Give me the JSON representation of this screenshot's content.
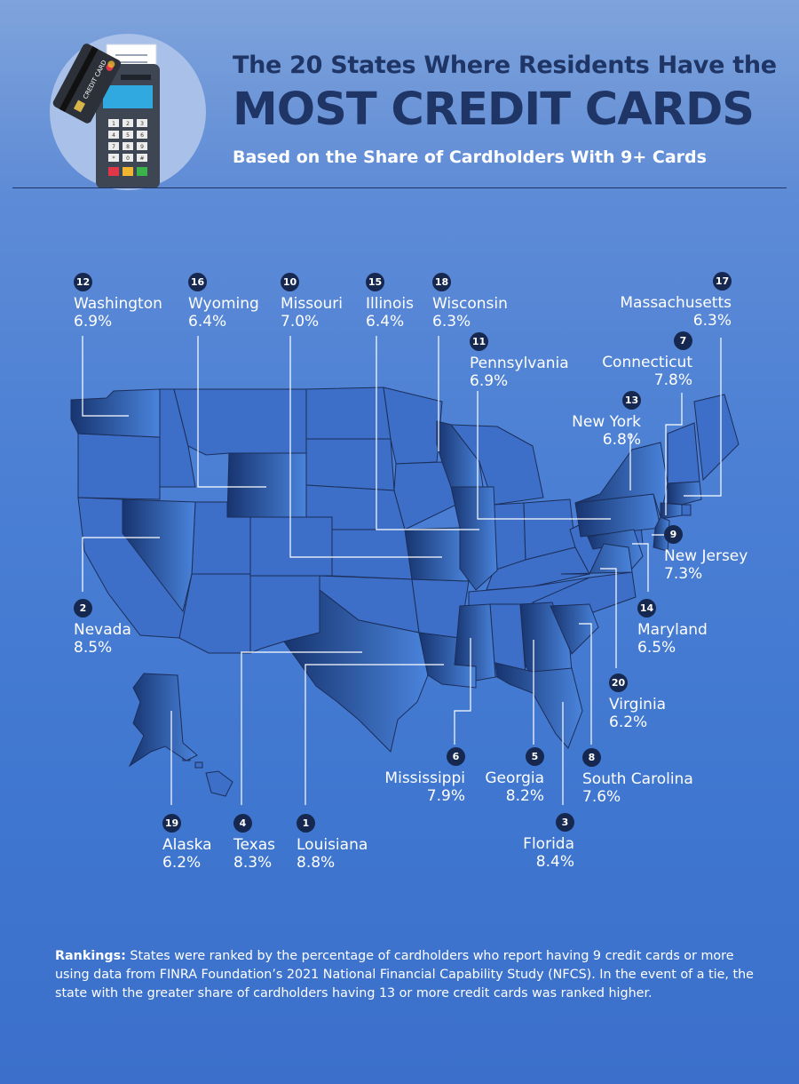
{
  "header": {
    "title_line1": "The 20 States Where Residents Have the",
    "title_line2": "MOST CREDIT CARDS",
    "subtitle": "Based on the Share of Cardholders With 9+ Cards",
    "card_text": "CREDIT CARD",
    "keypad_keys": [
      "1",
      "2",
      "3",
      "4",
      "5",
      "6",
      "7",
      "8",
      "9",
      "*",
      "0",
      "#"
    ]
  },
  "colors": {
    "title": "#1f3566",
    "rank_badge": "#16284f",
    "state_base": "#3d6fc8",
    "state_highlight_dark": "#1a3a7a",
    "state_highlight_light": "#3f78d4",
    "state_border": "#1c2e5a",
    "leader_line": "#ffffff"
  },
  "states": [
    {
      "rank": "1",
      "name": "Louisiana",
      "pct": "8.8%"
    },
    {
      "rank": "2",
      "name": "Nevada",
      "pct": "8.5%"
    },
    {
      "rank": "3",
      "name": "Florida",
      "pct": "8.4%"
    },
    {
      "rank": "4",
      "name": "Texas",
      "pct": "8.3%"
    },
    {
      "rank": "5",
      "name": "Georgia",
      "pct": "8.2%"
    },
    {
      "rank": "6",
      "name": "Mississippi",
      "pct": "7.9%"
    },
    {
      "rank": "7",
      "name": "Connecticut",
      "pct": "7.8%"
    },
    {
      "rank": "8",
      "name": "South Carolina",
      "pct": "7.6%"
    },
    {
      "rank": "9",
      "name": "New Jersey",
      "pct": "7.3%"
    },
    {
      "rank": "10",
      "name": "Missouri",
      "pct": "7.0%"
    },
    {
      "rank": "11",
      "name": "Pennsylvania",
      "pct": "6.9%"
    },
    {
      "rank": "12",
      "name": "Washington",
      "pct": "6.9%"
    },
    {
      "rank": "13",
      "name": "New York",
      "pct": "6.8%"
    },
    {
      "rank": "14",
      "name": "Maryland",
      "pct": "6.5%"
    },
    {
      "rank": "15",
      "name": "Illinois",
      "pct": "6.4%"
    },
    {
      "rank": "16",
      "name": "Wyoming",
      "pct": "6.4%"
    },
    {
      "rank": "17",
      "name": "Massachusetts",
      "pct": "6.3%"
    },
    {
      "rank": "18",
      "name": "Wisconsin",
      "pct": "6.3%"
    },
    {
      "rank": "19",
      "name": "Alaska",
      "pct": "6.2%"
    },
    {
      "rank": "20",
      "name": "Virginia",
      "pct": "6.2%"
    }
  ],
  "footnote": {
    "lead": "Rankings:",
    "text": " States were ranked by the percentage of cardholders who report having 9 credit cards or more using data from FINRA Foundation’s 2021 National Financial Capability Study (NFCS). In the event of a tie, the state with the greater share of cardholders having 13 or more credit cards was ranked higher."
  }
}
